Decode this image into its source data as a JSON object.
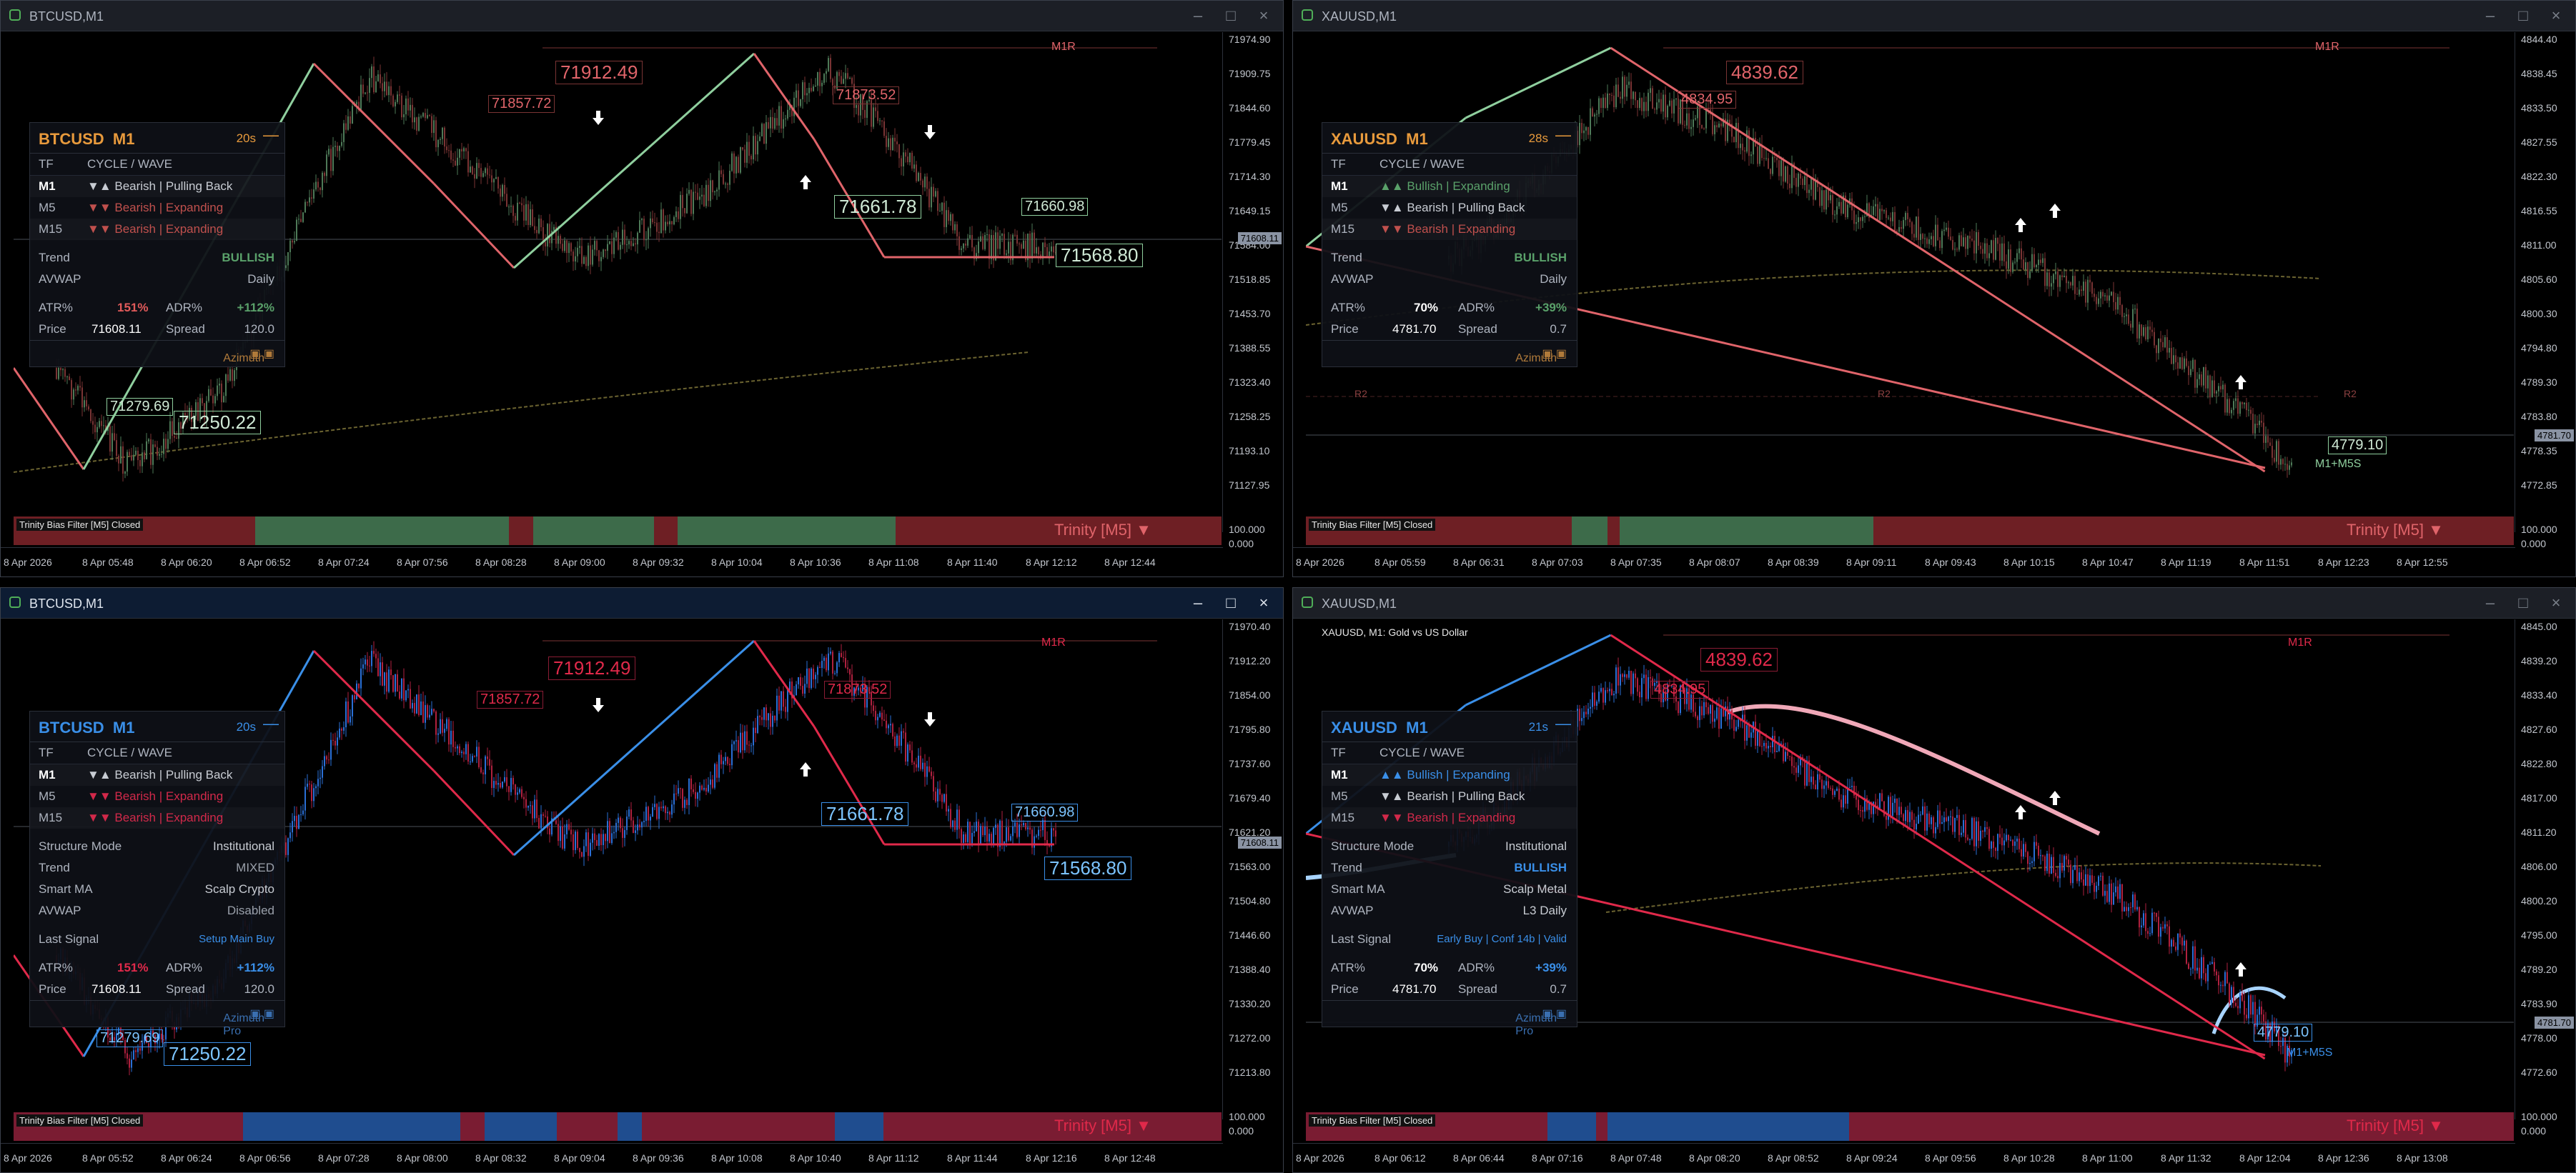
{
  "windows": [
    {
      "title": "BTCUSD,M1",
      "theme": "green",
      "panel": {
        "symbol": "BTCUSD",
        "tf": "M1",
        "timer": "20s",
        "header_tf": "TF",
        "header_cycle": "CYCLE / WAVE",
        "rows": [
          {
            "tf": "M1",
            "text": "▼▲ Bearish | Pulling Back",
            "color": "#c8ccd3"
          },
          {
            "tf": "M5",
            "text": "▼▼ Bearish | Expanding",
            "color": "#c0504d"
          },
          {
            "tf": "M15",
            "text": "▼▼ Bearish | Expanding",
            "color": "#c0504d"
          }
        ],
        "fields": [
          {
            "k": "Trend",
            "v": "BULLISH",
            "color": "#5aa16a"
          },
          {
            "k": "AVWAP",
            "v": "Daily",
            "color": "#aeb4bf"
          }
        ],
        "atr_label": "ATR%",
        "atr": "151%",
        "atr_color": "#e15a5a",
        "adr_label": "ADR%",
        "adr": "+112%",
        "adr_color": "#5aa16a",
        "price_label": "Price",
        "price": "71608.11",
        "spread_label": "Spread",
        "spread": "120.0",
        "footer": "Azimuth"
      },
      "levels": {
        "m1r": "M1R",
        "high": "71912.49",
        "high2": "71857.72",
        "high3": "71873.52",
        "mid": "71661.78",
        "mid2": "71660.98",
        "low": "71568.80",
        "low2": "71279.69",
        "low3": "71250.22"
      },
      "yticks": [
        "71974.90",
        "71909.75",
        "71844.60",
        "71779.45",
        "71714.30",
        "71649.15",
        "71584.00",
        "71518.85",
        "71453.70",
        "71388.55",
        "71323.40",
        "71258.25",
        "71193.10",
        "71127.95"
      ],
      "yticks_ind": [
        "100.000",
        "0.000"
      ],
      "price_tag": "71608.11",
      "xticks": [
        "8 Apr 2026",
        "8 Apr 05:48",
        "8 Apr 06:20",
        "8 Apr 06:52",
        "8 Apr 07:24",
        "8 Apr 07:56",
        "8 Apr 08:28",
        "8 Apr 09:00",
        "8 Apr 09:32",
        "8 Apr 10:04",
        "8 Apr 10:36",
        "8 Apr 11:08",
        "8 Apr 11:40",
        "8 Apr 12:12",
        "8 Apr 12:44"
      ],
      "bias_label": "Trinity Bias Filter [M5] Closed",
      "bias_name": "Trinity [M5] ▼"
    },
    {
      "title": "XAUUSD,M1",
      "theme": "green",
      "panel": {
        "symbol": "XAUUSD",
        "tf": "M1",
        "timer": "28s",
        "header_tf": "TF",
        "header_cycle": "CYCLE / WAVE",
        "rows": [
          {
            "tf": "M1",
            "text": "▲▲ Bullish | Expanding",
            "color": "#5aa16a"
          },
          {
            "tf": "M5",
            "text": "▼▲ Bearish | Pulling Back",
            "color": "#c8ccd3"
          },
          {
            "tf": "M15",
            "text": "▼▼ Bearish | Expanding",
            "color": "#c0504d"
          }
        ],
        "fields": [
          {
            "k": "Trend",
            "v": "BULLISH",
            "color": "#5aa16a"
          },
          {
            "k": "AVWAP",
            "v": "Daily",
            "color": "#aeb4bf"
          }
        ],
        "atr_label": "ATR%",
        "atr": "70%",
        "atr_color": "#ffffff",
        "adr_label": "ADR%",
        "adr": "+39%",
        "adr_color": "#5aa16a",
        "price_label": "Price",
        "price": "4781.70",
        "spread_label": "Spread",
        "spread": "0.7",
        "footer": "Azimuth"
      },
      "levels": {
        "m1r": "M1R",
        "high": "4839.62",
        "high2": "4834.95",
        "low": "4779.10",
        "r2": "R2",
        "m1m5s": "M1+M5S"
      },
      "yticks": [
        "4844.40",
        "4838.45",
        "4833.50",
        "4827.55",
        "4822.30",
        "4816.55",
        "4811.00",
        "4805.60",
        "4800.30",
        "4794.80",
        "4789.30",
        "4783.80",
        "4778.35",
        "4772.85"
      ],
      "yticks_ind": [
        "100.000",
        "0.000"
      ],
      "price_tag": "4781.70",
      "xticks": [
        "8 Apr 2026",
        "8 Apr 05:59",
        "8 Apr 06:31",
        "8 Apr 07:03",
        "8 Apr 07:35",
        "8 Apr 08:07",
        "8 Apr 08:39",
        "8 Apr 09:11",
        "8 Apr 09:43",
        "8 Apr 10:15",
        "8 Apr 10:47",
        "8 Apr 11:19",
        "8 Apr 11:51",
        "8 Apr 12:23",
        "8 Apr 12:55"
      ],
      "bias_label": "Trinity Bias Filter [M5] Closed",
      "bias_name": "Trinity [M5] ▼"
    },
    {
      "title": "BTCUSD,M1",
      "theme": "blue",
      "panel": {
        "symbol": "BTCUSD",
        "tf": "M1",
        "timer": "20s",
        "header_tf": "TF",
        "header_cycle": "CYCLE / WAVE",
        "rows": [
          {
            "tf": "M1",
            "text": "▼▲ Bearish | Pulling Back",
            "color": "#c8ccd3"
          },
          {
            "tf": "M5",
            "text": "▼▼ Bearish | Expanding",
            "color": "#d2294a"
          },
          {
            "tf": "M15",
            "text": "▼▼ Bearish | Expanding",
            "color": "#d2294a"
          }
        ],
        "fields": [
          {
            "k": "Structure Mode",
            "v": "Institutional",
            "color": "#c8ccd3"
          },
          {
            "k": "Trend",
            "v": "MIXED",
            "color": "#9aa0aa"
          },
          {
            "k": "Smart MA",
            "v": "Scalp Crypto",
            "color": "#c8ccd3"
          },
          {
            "k": "AVWAP",
            "v": "Disabled",
            "color": "#9aa0aa"
          }
        ],
        "signal_label": "Last Signal",
        "signal": "Setup Main Buy",
        "atr_label": "ATR%",
        "atr": "151%",
        "atr_color": "#e0294a",
        "adr_label": "ADR%",
        "adr": "+112%",
        "adr_color": "#3a8fe8",
        "price_label": "Price",
        "price": "71608.11",
        "spread_label": "Spread",
        "spread": "120.0",
        "footer": "Azimuth Pro"
      },
      "levels": {
        "m1r": "M1R",
        "high": "71912.49",
        "high2": "71857.72",
        "high3": "71873.52",
        "mid": "71661.78",
        "mid2": "71660.98",
        "low": "71568.80",
        "low2": "71279.69",
        "low3": "71250.22"
      },
      "yticks": [
        "71970.40",
        "71912.20",
        "71854.00",
        "71795.80",
        "71737.60",
        "71679.40",
        "71621.20",
        "71563.00",
        "71504.80",
        "71446.60",
        "71388.40",
        "71330.20",
        "71272.00",
        "71213.80"
      ],
      "yticks_ind": [
        "100.000",
        "0.000"
      ],
      "price_tag": "71608.11",
      "xticks": [
        "8 Apr 2026",
        "8 Apr 05:52",
        "8 Apr 06:24",
        "8 Apr 06:56",
        "8 Apr 07:28",
        "8 Apr 08:00",
        "8 Apr 08:32",
        "8 Apr 09:04",
        "8 Apr 09:36",
        "8 Apr 10:08",
        "8 Apr 10:40",
        "8 Apr 11:12",
        "8 Apr 11:44",
        "8 Apr 12:16",
        "8 Apr 12:48"
      ],
      "bias_label": "Trinity Bias Filter [M5] Closed",
      "bias_name": "Trinity [M5] ▼"
    },
    {
      "title": "XAUUSD,M1",
      "theme": "blue",
      "symbol_line": "XAUUSD, M1:  Gold vs US Dollar",
      "panel": {
        "symbol": "XAUUSD",
        "tf": "M1",
        "timer": "21s",
        "header_tf": "TF",
        "header_cycle": "CYCLE / WAVE",
        "rows": [
          {
            "tf": "M1",
            "text": "▲▲ Bullish | Expanding",
            "color": "#3a8fe8"
          },
          {
            "tf": "M5",
            "text": "▼▲ Bearish | Pulling Back",
            "color": "#c8ccd3"
          },
          {
            "tf": "M15",
            "text": "▼▼ Bearish | Expanding",
            "color": "#d2294a"
          }
        ],
        "fields": [
          {
            "k": "Structure Mode",
            "v": "Institutional",
            "color": "#c8ccd3"
          },
          {
            "k": "Trend",
            "v": "BULLISH",
            "color": "#3a8fe8"
          },
          {
            "k": "Smart MA",
            "v": "Scalp Metal",
            "color": "#c8ccd3"
          },
          {
            "k": "AVWAP",
            "v": "L3 Daily",
            "color": "#c8ccd3"
          }
        ],
        "signal_label": "Last Signal",
        "signal": "Early Buy | Conf 14b | Valid",
        "atr_label": "ATR%",
        "atr": "70%",
        "atr_color": "#ffffff",
        "adr_label": "ADR%",
        "adr": "+39%",
        "adr_color": "#3a8fe8",
        "price_label": "Price",
        "price": "4781.70",
        "spread_label": "Spread",
        "spread": "0.7",
        "footer": "Azimuth Pro"
      },
      "levels": {
        "m1r": "M1R",
        "high": "4839.62",
        "high2": "4834.95",
        "low": "4779.10",
        "m1m5s": "M1+M5S"
      },
      "yticks": [
        "4845.00",
        "4839.20",
        "4833.40",
        "4827.60",
        "4822.80",
        "4817.00",
        "4811.20",
        "4806.00",
        "4800.20",
        "4795.00",
        "4789.20",
        "4783.90",
        "4778.00",
        "4772.60"
      ],
      "yticks_ind": [
        "100.000",
        "0.000"
      ],
      "price_tag": "4781.70",
      "xticks": [
        "8 Apr 2026",
        "8 Apr 06:12",
        "8 Apr 06:44",
        "8 Apr 07:16",
        "8 Apr 07:48",
        "8 Apr 08:20",
        "8 Apr 08:52",
        "8 Apr 09:24",
        "8 Apr 09:56",
        "8 Apr 10:28",
        "8 Apr 11:00",
        "8 Apr 11:32",
        "8 Apr 12:04",
        "8 Apr 12:36",
        "8 Apr 13:08"
      ],
      "bias_label": "Trinity Bias Filter [M5] Closed",
      "bias_name": "Trinity [M5] ▼"
    }
  ],
  "colors": {
    "green_bull": "#4e7a58",
    "green_bear": "#7a3434",
    "green_zig_up": "#8fcf9e",
    "green_zig_dn": "#e0646a",
    "blue_bull": "#2a6fd6",
    "blue_bear": "#b0213f",
    "blue_zig_up": "#3a8fe8",
    "blue_zig_dn": "#e0294a",
    "bias_green": "#3d6b4a",
    "bias_red": "#6e1f24",
    "bias_blue": "#1f4d8f",
    "bias_red_b": "#7a1c32"
  }
}
